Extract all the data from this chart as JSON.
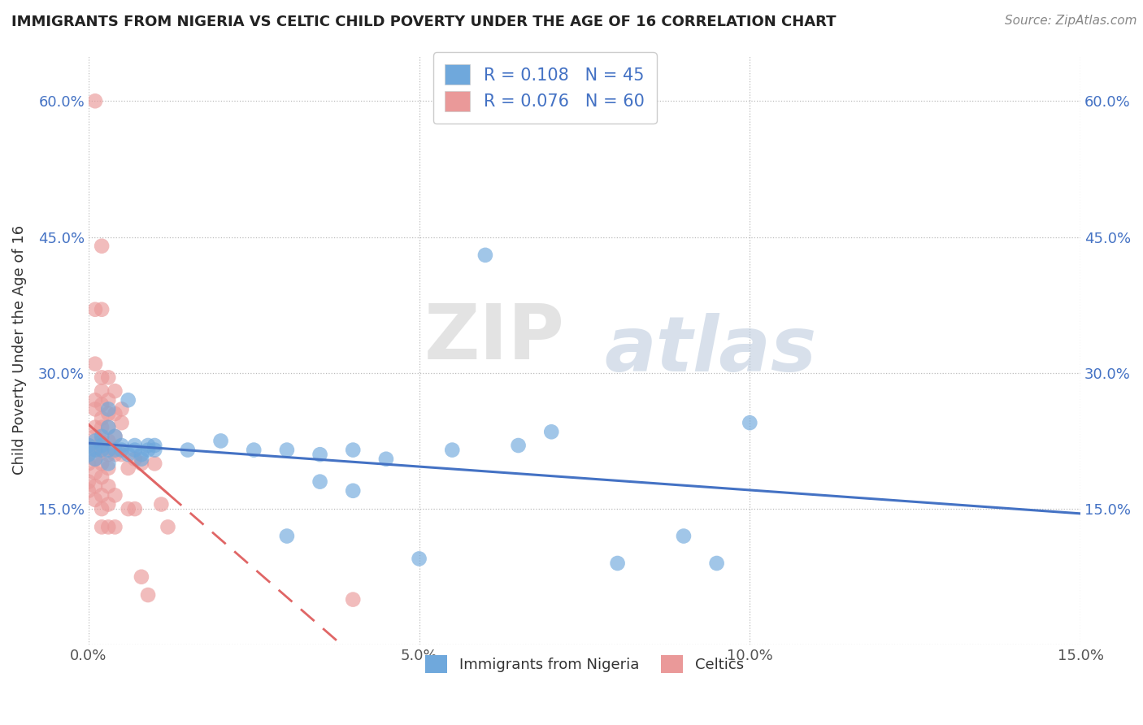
{
  "title": "IMMIGRANTS FROM NIGERIA VS CELTIC CHILD POVERTY UNDER THE AGE OF 16 CORRELATION CHART",
  "source": "Source: ZipAtlas.com",
  "xlabel_blue": "Immigrants from Nigeria",
  "xlabel_pink": "Celtics",
  "ylabel": "Child Poverty Under the Age of 16",
  "xlim": [
    0.0,
    0.15
  ],
  "ylim": [
    0.0,
    0.65
  ],
  "xticks": [
    0.0,
    0.05,
    0.1,
    0.15
  ],
  "xticklabels": [
    "0.0%",
    "5.0%",
    "10.0%",
    "15.0%"
  ],
  "yticks": [
    0.0,
    0.15,
    0.3,
    0.45,
    0.6
  ],
  "yticklabels": [
    "",
    "15.0%",
    "30.0%",
    "45.0%",
    "60.0%"
  ],
  "R_blue": 0.108,
  "N_blue": 45,
  "R_pink": 0.076,
  "N_pink": 60,
  "blue_color": "#6fa8dc",
  "pink_color": "#ea9999",
  "trend_blue": "#4472c4",
  "trend_pink": "#e06666",
  "legend_text_color": "#4472c4",
  "watermark": "ZIPatlas",
  "blue_points": [
    [
      0.0,
      0.22
    ],
    [
      0.0,
      0.21
    ],
    [
      0.001,
      0.215
    ],
    [
      0.001,
      0.205
    ],
    [
      0.001,
      0.225
    ],
    [
      0.002,
      0.22
    ],
    [
      0.002,
      0.23
    ],
    [
      0.002,
      0.215
    ],
    [
      0.003,
      0.24
    ],
    [
      0.003,
      0.26
    ],
    [
      0.003,
      0.215
    ],
    [
      0.003,
      0.2
    ],
    [
      0.004,
      0.23
    ],
    [
      0.004,
      0.215
    ],
    [
      0.005,
      0.22
    ],
    [
      0.005,
      0.215
    ],
    [
      0.006,
      0.27
    ],
    [
      0.006,
      0.21
    ],
    [
      0.007,
      0.22
    ],
    [
      0.007,
      0.215
    ],
    [
      0.008,
      0.21
    ],
    [
      0.008,
      0.205
    ],
    [
      0.009,
      0.215
    ],
    [
      0.009,
      0.22
    ],
    [
      0.01,
      0.215
    ],
    [
      0.01,
      0.22
    ],
    [
      0.015,
      0.215
    ],
    [
      0.02,
      0.225
    ],
    [
      0.025,
      0.215
    ],
    [
      0.03,
      0.215
    ],
    [
      0.03,
      0.12
    ],
    [
      0.035,
      0.21
    ],
    [
      0.035,
      0.18
    ],
    [
      0.04,
      0.215
    ],
    [
      0.04,
      0.17
    ],
    [
      0.045,
      0.205
    ],
    [
      0.05,
      0.095
    ],
    [
      0.055,
      0.215
    ],
    [
      0.06,
      0.43
    ],
    [
      0.065,
      0.22
    ],
    [
      0.07,
      0.235
    ],
    [
      0.08,
      0.09
    ],
    [
      0.09,
      0.12
    ],
    [
      0.095,
      0.09
    ],
    [
      0.1,
      0.245
    ]
  ],
  "pink_points": [
    [
      0.0,
      0.22
    ],
    [
      0.0,
      0.2
    ],
    [
      0.0,
      0.18
    ],
    [
      0.0,
      0.17
    ],
    [
      0.001,
      0.6
    ],
    [
      0.001,
      0.37
    ],
    [
      0.001,
      0.31
    ],
    [
      0.001,
      0.27
    ],
    [
      0.001,
      0.26
    ],
    [
      0.001,
      0.24
    ],
    [
      0.001,
      0.23
    ],
    [
      0.001,
      0.215
    ],
    [
      0.001,
      0.205
    ],
    [
      0.001,
      0.19
    ],
    [
      0.001,
      0.175
    ],
    [
      0.001,
      0.16
    ],
    [
      0.002,
      0.44
    ],
    [
      0.002,
      0.37
    ],
    [
      0.002,
      0.295
    ],
    [
      0.002,
      0.28
    ],
    [
      0.002,
      0.265
    ],
    [
      0.002,
      0.25
    ],
    [
      0.002,
      0.24
    ],
    [
      0.002,
      0.225
    ],
    [
      0.002,
      0.215
    ],
    [
      0.002,
      0.2
    ],
    [
      0.002,
      0.185
    ],
    [
      0.002,
      0.165
    ],
    [
      0.002,
      0.15
    ],
    [
      0.002,
      0.13
    ],
    [
      0.003,
      0.295
    ],
    [
      0.003,
      0.27
    ],
    [
      0.003,
      0.255
    ],
    [
      0.003,
      0.24
    ],
    [
      0.003,
      0.225
    ],
    [
      0.003,
      0.21
    ],
    [
      0.003,
      0.195
    ],
    [
      0.003,
      0.175
    ],
    [
      0.003,
      0.155
    ],
    [
      0.003,
      0.13
    ],
    [
      0.004,
      0.28
    ],
    [
      0.004,
      0.255
    ],
    [
      0.004,
      0.23
    ],
    [
      0.004,
      0.21
    ],
    [
      0.004,
      0.165
    ],
    [
      0.004,
      0.13
    ],
    [
      0.005,
      0.26
    ],
    [
      0.005,
      0.245
    ],
    [
      0.005,
      0.21
    ],
    [
      0.006,
      0.195
    ],
    [
      0.006,
      0.15
    ],
    [
      0.007,
      0.205
    ],
    [
      0.007,
      0.15
    ],
    [
      0.008,
      0.2
    ],
    [
      0.008,
      0.075
    ],
    [
      0.009,
      0.055
    ],
    [
      0.01,
      0.2
    ],
    [
      0.011,
      0.155
    ],
    [
      0.012,
      0.13
    ],
    [
      0.04,
      0.05
    ]
  ]
}
